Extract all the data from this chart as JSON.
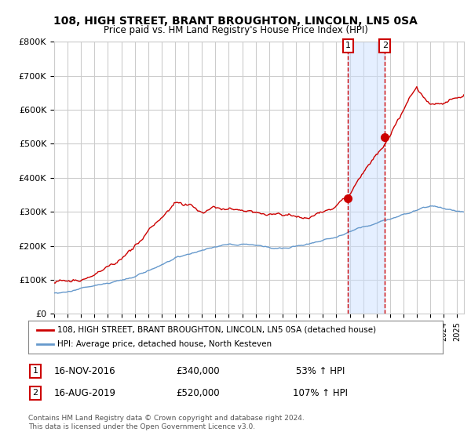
{
  "title": "108, HIGH STREET, BRANT BROUGHTON, LINCOLN, LN5 0SA",
  "subtitle": "Price paid vs. HM Land Registry's House Price Index (HPI)",
  "legend_line1": "108, HIGH STREET, BRANT BROUGHTON, LINCOLN, LN5 0SA (detached house)",
  "legend_line2": "HPI: Average price, detached house, North Kesteven",
  "event1_label": "1",
  "event1_date": "16-NOV-2016",
  "event1_price": "£340,000",
  "event1_hpi": "53% ↑ HPI",
  "event2_label": "2",
  "event2_date": "16-AUG-2019",
  "event2_price": "£520,000",
  "event2_hpi": "107% ↑ HPI",
  "footer": "Contains HM Land Registry data © Crown copyright and database right 2024.\nThis data is licensed under the Open Government Licence v3.0.",
  "hpi_line_color": "#6699cc",
  "price_line_color": "#cc0000",
  "event_dot_color": "#cc0000",
  "event_vline_color": "#cc0000",
  "shade_color": "#cce0ff",
  "grid_color": "#cccccc",
  "background_color": "#ffffff",
  "ylim": [
    0,
    800000
  ],
  "yticks": [
    0,
    100000,
    200000,
    300000,
    400000,
    500000,
    600000,
    700000,
    800000
  ],
  "ytick_labels": [
    "£0",
    "£100K",
    "£200K",
    "£300K",
    "£400K",
    "£500K",
    "£600K",
    "£700K",
    "£800K"
  ],
  "xlim_start": 1995.0,
  "xlim_end": 2025.5,
  "event1_x": 2016.88,
  "event1_y": 340000,
  "event2_x": 2019.62,
  "event2_y": 520000
}
